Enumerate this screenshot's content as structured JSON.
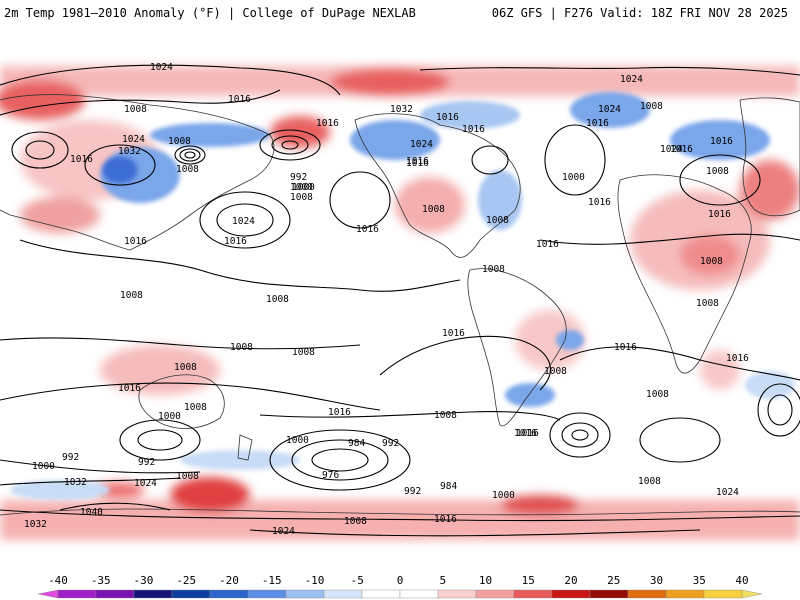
{
  "header": {
    "left": "2m Temp 1981–2010 Anomaly (°F) | College of DuPage NEXLAB",
    "right": "06Z GFS | F276 Valid: 18Z FRI NOV 28 2025"
  },
  "map": {
    "variable": "2m temperature anomaly",
    "units": "°F",
    "contour_field": "sea-level pressure (mb)",
    "contour_labels": [
      {
        "text": "1024"
      },
      {
        "text": "1024"
      },
      {
        "text": "1008"
      },
      {
        "text": "1016"
      },
      {
        "text": "1032"
      },
      {
        "text": "1016"
      },
      {
        "text": "1008"
      },
      {
        "text": "1024"
      },
      {
        "text": "1016"
      },
      {
        "text": "1024"
      },
      {
        "text": "1008"
      },
      {
        "text": "1016"
      },
      {
        "text": "1032"
      },
      {
        "text": "1016"
      },
      {
        "text": "1016"
      },
      {
        "text": "1008"
      },
      {
        "text": "1024"
      },
      {
        "text": "1016"
      },
      {
        "text": "1000"
      },
      {
        "text": "1016"
      },
      {
        "text": "1000"
      },
      {
        "text": "1016"
      },
      {
        "text": "1024"
      },
      {
        "text": "1016"
      },
      {
        "text": "1008"
      },
      {
        "text": "992"
      },
      {
        "text": "1000"
      },
      {
        "text": "1008"
      },
      {
        "text": "1008"
      },
      {
        "text": "1008"
      },
      {
        "text": "1016"
      },
      {
        "text": "1024"
      },
      {
        "text": "1016"
      },
      {
        "text": "1016"
      },
      {
        "text": "1016"
      },
      {
        "text": "1016"
      },
      {
        "text": "1016"
      },
      {
        "text": "1008"
      },
      {
        "text": "1008"
      },
      {
        "text": "1008"
      },
      {
        "text": "1008"
      },
      {
        "text": "1008"
      },
      {
        "text": "1008"
      },
      {
        "text": "1008"
      },
      {
        "text": "1016"
      },
      {
        "text": "1008"
      },
      {
        "text": "1016"
      },
      {
        "text": "1016"
      },
      {
        "text": "1008"
      },
      {
        "text": "1008"
      },
      {
        "text": "1016"
      },
      {
        "text": "1016"
      },
      {
        "text": "1008"
      },
      {
        "text": "1016"
      },
      {
        "text": "1008"
      },
      {
        "text": "1000"
      },
      {
        "text": "992"
      },
      {
        "text": "1000"
      },
      {
        "text": "984"
      },
      {
        "text": "992"
      },
      {
        "text": "1016"
      },
      {
        "text": "992"
      },
      {
        "text": "976"
      },
      {
        "text": "1000"
      },
      {
        "text": "1008"
      },
      {
        "text": "992"
      },
      {
        "text": "984"
      },
      {
        "text": "1000"
      },
      {
        "text": "1032"
      },
      {
        "text": "1024"
      },
      {
        "text": "1040"
      },
      {
        "text": "1032"
      },
      {
        "text": "1008"
      },
      {
        "text": "1024"
      },
      {
        "text": "1008"
      },
      {
        "text": "1016"
      },
      {
        "text": "1024"
      }
    ]
  },
  "colorbar": {
    "ticks": [
      "-40",
      "-35",
      "-30",
      "-25",
      "-20",
      "-15",
      "-10",
      "-5",
      "0",
      "5",
      "10",
      "15",
      "20",
      "25",
      "30",
      "35",
      "40"
    ],
    "colors": [
      "#e04ae0",
      "#a01ec8",
      "#7a12b0",
      "#14147a",
      "#0a3ea0",
      "#2a64cc",
      "#5a8ee6",
      "#9cc0f2",
      "#d6e6fa",
      "#ffffff",
      "#ffffff",
      "#fbd0d0",
      "#f4a0a0",
      "#e85a5a",
      "#c81414",
      "#960a0a",
      "#e06e10",
      "#f0a020",
      "#f8d040",
      "#f0e060"
    ]
  }
}
